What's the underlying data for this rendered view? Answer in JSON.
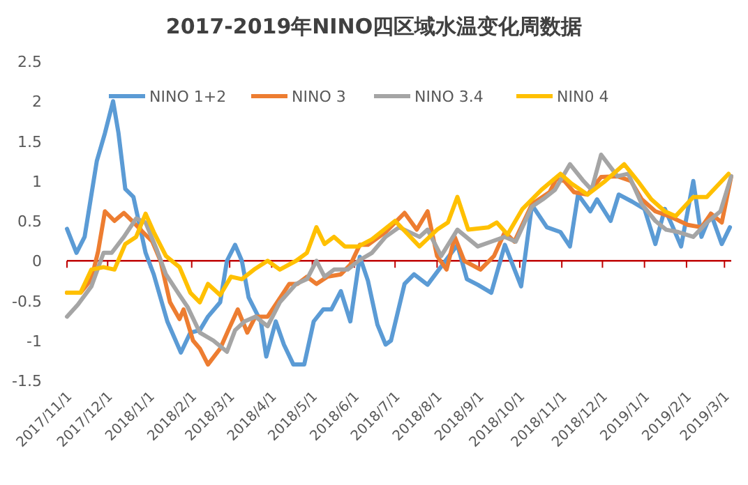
{
  "chart_data": {
    "type": "line",
    "title": "2017-2019年NINO四区域水温变化周数据",
    "legend": "top",
    "ref_lines": [
      {
        "axis": "y",
        "value": 0,
        "color": "#c00000"
      }
    ],
    "line_style": "solid",
    "ylim": [
      -1.5,
      2.5
    ],
    "yticks": [
      -1.5,
      -1,
      -0.5,
      0,
      0.5,
      1,
      1.5,
      2,
      2.5
    ],
    "xlim": [
      "2017-11-01",
      "2019-03-06"
    ],
    "xticks": [
      {
        "value": "2017-11-01",
        "label": "2017/11/1"
      },
      {
        "value": "2017-12-01",
        "label": "2017/12/1"
      },
      {
        "value": "2018-01-01",
        "label": "2018/1/1"
      },
      {
        "value": "2018-02-01",
        "label": "2018/2/1"
      },
      {
        "value": "2018-03-01",
        "label": "2018/3/1"
      },
      {
        "value": "2018-04-01",
        "label": "2018/4/1"
      },
      {
        "value": "2018-05-01",
        "label": "2018/5/1"
      },
      {
        "value": "2018-06-01",
        "label": "2018/6/1"
      },
      {
        "value": "2018-07-01",
        "label": "2018/7/1"
      },
      {
        "value": "2018-08-01",
        "label": "2018/8/1"
      },
      {
        "value": "2018-09-01",
        "label": "2018/9/1"
      },
      {
        "value": "2018-10-01",
        "label": "2018/10/1"
      },
      {
        "value": "2018-11-01",
        "label": "2018/11/1"
      },
      {
        "value": "2018-12-01",
        "label": "2018/12/1"
      },
      {
        "value": "2019-01-01",
        "label": "2019/1/1"
      },
      {
        "value": "2019-02-01",
        "label": "2019/2/1"
      },
      {
        "value": "2019-03-01",
        "label": "2019/3/1"
      }
    ],
    "series": [
      {
        "name": "NINO 1+2",
        "color": "#5b9bd5",
        "x": [
          "2017-11-01",
          "2017-11-08",
          "2017-11-14",
          "2017-11-23",
          "2017-11-29",
          "2017-12-05",
          "2017-12-09",
          "2017-12-14",
          "2017-12-20",
          "2017-12-29",
          "2018-01-04",
          "2018-01-14",
          "2018-01-24",
          "2018-01-31",
          "2018-02-07",
          "2018-02-13",
          "2018-02-22",
          "2018-02-27",
          "2018-03-05",
          "2018-03-10",
          "2018-03-15",
          "2018-03-24",
          "2018-03-28",
          "2018-04-04",
          "2018-04-10",
          "2018-04-17",
          "2018-04-25",
          "2018-05-02",
          "2018-05-09",
          "2018-05-15",
          "2018-05-22",
          "2018-05-29",
          "2018-06-05",
          "2018-06-11",
          "2018-06-18",
          "2018-06-24",
          "2018-06-28",
          "2018-07-08",
          "2018-07-15",
          "2018-07-25",
          "2018-08-16",
          "2018-08-23",
          "2018-08-31",
          "2018-09-10",
          "2018-09-20",
          "2018-10-02",
          "2018-10-10",
          "2018-10-21",
          "2018-10-31",
          "2018-11-07",
          "2018-11-13",
          "2018-11-22",
          "2018-11-27",
          "2018-12-07",
          "2018-12-13",
          "2018-12-23",
          "2019-01-01",
          "2019-01-09",
          "2019-01-16",
          "2019-01-22",
          "2019-01-28",
          "2019-02-06",
          "2019-02-12",
          "2019-02-19",
          "2019-02-27",
          "2019-03-05"
        ],
        "values": [
          0.4,
          0.1,
          0.3,
          1.25,
          1.6,
          2.0,
          1.6,
          0.9,
          0.8,
          0.1,
          -0.17,
          -0.76,
          -1.15,
          -0.9,
          -0.87,
          -0.7,
          -0.52,
          0.0,
          0.2,
          0.0,
          -0.46,
          -0.76,
          -1.2,
          -0.76,
          -1.05,
          -1.3,
          -1.3,
          -0.76,
          -0.61,
          -0.61,
          -0.38,
          -0.76,
          0.05,
          -0.25,
          -0.8,
          -1.05,
          -1.0,
          -0.29,
          -0.17,
          -0.3,
          0.2,
          -0.23,
          -0.3,
          -0.4,
          0.2,
          -0.32,
          0.7,
          0.42,
          0.36,
          0.18,
          0.83,
          0.62,
          0.77,
          0.5,
          0.83,
          0.74,
          0.65,
          0.21,
          0.65,
          0.42,
          0.18,
          1.0,
          0.3,
          0.59,
          0.21,
          0.42
        ]
      },
      {
        "name": "NINO 3",
        "color": "#ed7d31",
        "x": [
          "2017-11-01",
          "2017-11-11",
          "2017-11-19",
          "2017-11-24",
          "2017-11-29",
          "2017-12-06",
          "2017-12-13",
          "2017-12-19",
          "2017-12-27",
          "2018-01-03",
          "2018-01-09",
          "2018-01-16",
          "2018-01-23",
          "2018-01-26",
          "2018-02-02",
          "2018-02-07",
          "2018-02-13",
          "2018-02-22",
          "2018-02-28",
          "2018-03-07",
          "2018-03-14",
          "2018-03-20",
          "2018-03-29",
          "2018-04-05",
          "2018-04-14",
          "2018-04-20",
          "2018-04-27",
          "2018-05-04",
          "2018-05-12",
          "2018-05-22",
          "2018-05-29",
          "2018-06-05",
          "2018-06-11",
          "2018-06-24",
          "2018-07-08",
          "2018-07-17",
          "2018-07-25",
          "2018-08-01",
          "2018-08-08",
          "2018-08-14",
          "2018-08-21",
          "2018-09-02",
          "2018-09-12",
          "2018-09-20",
          "2018-09-27",
          "2018-10-10",
          "2018-10-23",
          "2018-10-28",
          "2018-11-03",
          "2018-11-10",
          "2018-11-20",
          "2018-11-30",
          "2018-12-12",
          "2018-12-22",
          "2018-12-30",
          "2019-01-09",
          "2019-01-19",
          "2019-02-02",
          "2019-02-12",
          "2019-02-19",
          "2019-02-27",
          "2019-03-06"
        ],
        "values": [
          -0.4,
          -0.4,
          -0.23,
          0.12,
          0.62,
          0.5,
          0.6,
          0.5,
          0.36,
          0.24,
          0.0,
          -0.52,
          -0.73,
          -0.61,
          -1.0,
          -1.1,
          -1.3,
          -1.1,
          -0.87,
          -0.61,
          -0.9,
          -0.7,
          -0.7,
          -0.52,
          -0.29,
          -0.29,
          -0.2,
          -0.29,
          -0.2,
          -0.17,
          -0.05,
          0.2,
          0.2,
          0.36,
          0.6,
          0.39,
          0.62,
          0.06,
          -0.11,
          0.3,
          0.0,
          -0.11,
          0.06,
          0.36,
          0.24,
          0.71,
          0.86,
          1.03,
          1.0,
          0.86,
          0.83,
          1.05,
          1.06,
          1.0,
          0.77,
          0.62,
          0.56,
          0.45,
          0.42,
          0.59,
          0.48,
          1.06
        ]
      },
      {
        "name": "NINO 3.4",
        "color": "#a5a5a5",
        "x": [
          "2017-11-01",
          "2017-11-09",
          "2017-11-19",
          "2017-11-28",
          "2017-12-04",
          "2017-12-13",
          "2017-12-22",
          "2017-12-29",
          "2018-01-06",
          "2018-01-13",
          "2018-01-23",
          "2018-01-29",
          "2018-02-07",
          "2018-02-17",
          "2018-02-27",
          "2018-03-05",
          "2018-03-12",
          "2018-03-20",
          "2018-03-29",
          "2018-04-07",
          "2018-04-19",
          "2018-04-27",
          "2018-05-04",
          "2018-05-10",
          "2018-05-17",
          "2018-05-27",
          "2018-06-04",
          "2018-06-14",
          "2018-06-24",
          "2018-07-04",
          "2018-07-19",
          "2018-07-25",
          "2018-08-04",
          "2018-08-16",
          "2018-08-31",
          "2018-09-10",
          "2018-09-20",
          "2018-09-28",
          "2018-10-10",
          "2018-10-18",
          "2018-10-27",
          "2018-11-07",
          "2018-11-17",
          "2018-11-23",
          "2018-11-30",
          "2018-12-12",
          "2018-12-20",
          "2018-12-30",
          "2019-01-09",
          "2019-01-17",
          "2019-01-26",
          "2019-02-06",
          "2019-02-16",
          "2019-02-26",
          "2019-03-06"
        ],
        "values": [
          -0.7,
          -0.55,
          -0.32,
          0.1,
          0.1,
          0.3,
          0.53,
          0.48,
          0.15,
          -0.17,
          -0.43,
          -0.58,
          -0.9,
          -1.0,
          -1.14,
          -0.87,
          -0.76,
          -0.7,
          -0.82,
          -0.52,
          -0.29,
          -0.23,
          0.0,
          -0.2,
          -0.11,
          -0.11,
          0.0,
          0.1,
          0.3,
          0.42,
          0.3,
          0.39,
          0.06,
          0.39,
          0.18,
          0.24,
          0.3,
          0.24,
          0.68,
          0.77,
          0.89,
          1.21,
          1.0,
          0.89,
          1.33,
          1.06,
          1.09,
          0.71,
          0.5,
          0.39,
          0.36,
          0.3,
          0.48,
          0.62,
          1.06
        ]
      },
      {
        "name": "NIN0 4",
        "color": "#ffc000",
        "x": [
          "2017-11-01",
          "2017-11-11",
          "2017-11-19",
          "2017-11-28",
          "2017-12-06",
          "2017-12-14",
          "2017-12-22",
          "2017-12-29",
          "2018-01-04",
          "2018-01-13",
          "2018-01-23",
          "2018-01-31",
          "2018-02-07",
          "2018-02-13",
          "2018-02-22",
          "2018-03-02",
          "2018-03-10",
          "2018-03-19",
          "2018-03-29",
          "2018-04-07",
          "2018-04-19",
          "2018-04-27",
          "2018-05-04",
          "2018-05-10",
          "2018-05-17",
          "2018-05-25",
          "2018-06-04",
          "2018-06-14",
          "2018-07-01",
          "2018-07-19",
          "2018-08-01",
          "2018-08-09",
          "2018-08-16",
          "2018-08-24",
          "2018-09-08",
          "2018-09-14",
          "2018-09-22",
          "2018-10-03",
          "2018-10-17",
          "2018-10-31",
          "2018-11-08",
          "2018-11-20",
          "2018-12-03",
          "2018-12-17",
          "2018-12-27",
          "2019-01-06",
          "2019-01-16",
          "2019-01-24",
          "2019-02-06",
          "2019-02-16",
          "2019-03-04"
        ],
        "values": [
          -0.4,
          -0.4,
          -0.11,
          -0.08,
          -0.11,
          0.21,
          0.3,
          0.59,
          0.36,
          0.06,
          -0.08,
          -0.4,
          -0.52,
          -0.29,
          -0.43,
          -0.2,
          -0.23,
          -0.11,
          0.0,
          -0.11,
          0.0,
          0.1,
          0.42,
          0.21,
          0.3,
          0.18,
          0.18,
          0.27,
          0.5,
          0.18,
          0.39,
          0.48,
          0.8,
          0.39,
          0.42,
          0.48,
          0.33,
          0.65,
          0.89,
          1.09,
          0.97,
          0.83,
          1.0,
          1.21,
          1.0,
          0.77,
          0.62,
          0.56,
          0.8,
          0.8,
          1.09
        ]
      }
    ]
  }
}
